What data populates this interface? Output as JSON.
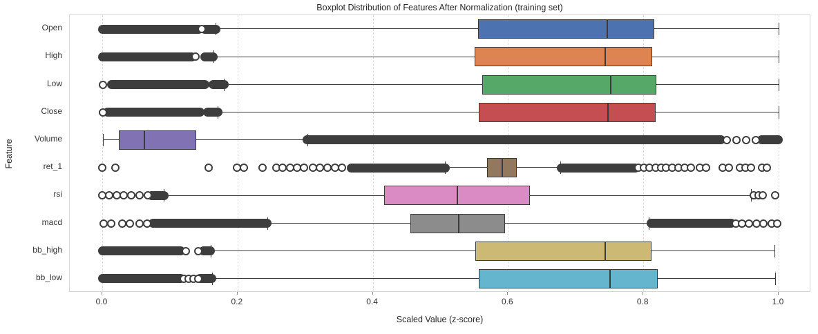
{
  "title": "Boxplot Distribution of Features After Normalization (training set)",
  "chart_data": {
    "type": "boxplot",
    "orientation": "horizontal",
    "title": "Boxplot Distribution of Features After Normalization (training set)",
    "xlabel": "Scaled Value (z-score)",
    "ylabel": "Feature",
    "xticks": [
      0.0,
      0.2,
      0.4,
      0.6,
      0.8,
      1.0
    ],
    "xlim": [
      -0.048,
      1.048
    ],
    "grid": "vertical-dashed",
    "legend": "none",
    "box_edge_color": "#3a3a3a",
    "flier_color": "#3d3d3d",
    "features": [
      {
        "name": "Open",
        "color": "#4C72B0",
        "whisker_low": 0.168,
        "q1": 0.556,
        "median": 0.747,
        "q3": 0.816,
        "whisker_high": 1.0,
        "outliers": {
          "bands": [
            [
              0.0,
              0.142
            ],
            [
              0.152,
              0.168
            ]
          ],
          "dots": [
            0.147
          ]
        }
      },
      {
        "name": "High",
        "color": "#DD8452",
        "whisker_low": 0.164,
        "q1": 0.551,
        "median": 0.744,
        "q3": 0.813,
        "whisker_high": 1.0,
        "outliers": {
          "bands": [
            [
              0.0,
              0.132
            ],
            [
              0.152,
              0.164
            ]
          ],
          "dots": [
            0.138
          ]
        }
      },
      {
        "name": "Low",
        "color": "#55A868",
        "whisker_low": 0.18,
        "q1": 0.562,
        "median": 0.752,
        "q3": 0.819,
        "whisker_high": 1.0,
        "outliers": {
          "bands": [
            [
              0.014,
              0.152
            ],
            [
              0.164,
              0.18
            ]
          ],
          "dots": [
            0.001
          ]
        }
      },
      {
        "name": "Close",
        "color": "#C44E52",
        "whisker_low": 0.171,
        "q1": 0.557,
        "median": 0.748,
        "q3": 0.818,
        "whisker_high": 1.0,
        "outliers": {
          "bands": [
            [
              0.008,
              0.145
            ],
            [
              0.156,
              0.171
            ]
          ],
          "dots": [
            0.001
          ]
        }
      },
      {
        "name": "Volume",
        "color": "#8172B3",
        "whisker_low": 0.001,
        "q1": 0.025,
        "median": 0.062,
        "q3": 0.139,
        "whisker_high": 0.303,
        "outliers": {
          "bands": [
            [
              0.303,
              0.915
            ],
            [
              0.975,
              1.0
            ]
          ],
          "dots": [
            0.923,
            0.938,
            0.952,
            0.966
          ]
        }
      },
      {
        "name": "ret_1",
        "color": "#937860",
        "whisker_low": 0.507,
        "q1": 0.569,
        "median": 0.591,
        "q3": 0.613,
        "whisker_high": 0.677,
        "outliers": {
          "bands": [
            [
              0.368,
              0.507
            ],
            [
              0.679,
              0.788
            ]
          ],
          "dots": [
            0.0,
            0.019,
            0.157,
            0.199,
            0.209,
            0.237,
            0.257,
            0.267,
            0.278,
            0.288,
            0.298,
            0.312,
            0.322,
            0.333,
            0.344,
            0.354,
            0.793,
            0.801,
            0.809,
            0.818,
            0.826,
            0.834,
            0.843,
            0.852,
            0.861,
            0.87,
            0.884,
            0.893,
            0.917,
            0.926,
            0.943,
            0.951,
            0.959,
            0.975,
            0.983
          ]
        }
      },
      {
        "name": "rsi",
        "color": "#DA8BC3",
        "whisker_low": 0.091,
        "q1": 0.417,
        "median": 0.525,
        "q3": 0.632,
        "whisker_high": 0.959,
        "outliers": {
          "bands": [
            [
              0.073,
              0.091
            ]
          ],
          "dots": [
            0.0,
            0.01,
            0.021,
            0.032,
            0.043,
            0.055,
            0.067,
            0.963,
            0.97,
            0.977,
            0.995
          ]
        }
      },
      {
        "name": "macd",
        "color": "#8C8C8C",
        "whisker_low": 0.244,
        "q1": 0.456,
        "median": 0.527,
        "q3": 0.595,
        "whisker_high": 0.808,
        "outliers": {
          "bands": [
            [
              0.075,
              0.244
            ],
            [
              0.812,
              0.93
            ]
          ],
          "dots": [
            0.002,
            0.013,
            0.03,
            0.041,
            0.055,
            0.066,
            0.937,
            0.946,
            0.956,
            0.967,
            0.978,
            0.99,
            0.998
          ]
        }
      },
      {
        "name": "bb_high",
        "color": "#CCB974",
        "whisker_low": 0.16,
        "q1": 0.552,
        "median": 0.744,
        "q3": 0.812,
        "whisker_high": 0.994,
        "outliers": {
          "bands": [
            [
              0.0,
              0.116
            ],
            [
              0.15,
              0.16
            ]
          ],
          "dots": [
            0.124,
            0.142
          ]
        }
      },
      {
        "name": "bb_low",
        "color": "#64B5CD",
        "whisker_low": 0.162,
        "q1": 0.557,
        "median": 0.751,
        "q3": 0.821,
        "whisker_high": 0.995,
        "outliers": {
          "bands": [
            [
              0.0,
              0.116
            ],
            [
              0.145,
              0.162
            ]
          ],
          "dots": [
            0.121,
            0.128,
            0.135,
            0.142
          ]
        }
      }
    ]
  }
}
